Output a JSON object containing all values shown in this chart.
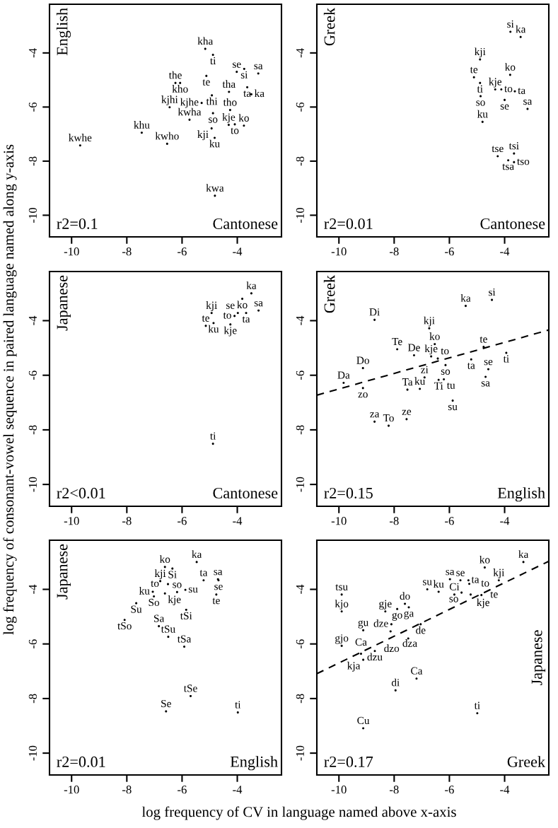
{
  "chart_data": [
    {
      "type": "scatter",
      "annotations": [
        "English",
        "Cantonese",
        "r2=0.1"
      ],
      "xlim": [
        -10.8,
        -2.4
      ],
      "ylim": [
        -10.8,
        -2.2
      ],
      "xticks": [
        -10,
        -8,
        -6,
        -4
      ],
      "yticks": [
        -10,
        -8,
        -6,
        -4
      ],
      "grid": false,
      "series": [
        {
          "marker": "circle",
          "x": [
            -5.16,
            -4.88,
            -5.12,
            -4.02,
            -3.75,
            -3.24,
            -6.24,
            -6.07,
            -3.64,
            -3.49,
            -4.3,
            -4.92,
            -5.29,
            -6.45,
            -4.88,
            -4.26,
            -5.73,
            -4.93,
            -4.31,
            -4.09,
            -3.76,
            -4.82,
            -7.46,
            -6.54,
            -9.69,
            -4.81
          ],
          "values": [
            -3.85,
            -4.07,
            -4.85,
            -4.7,
            -4.59,
            -4.76,
            -5.11,
            -5.11,
            -5.27,
            -5.53,
            -5.44,
            -5.57,
            -5.85,
            -6.01,
            -6.23,
            -6.11,
            -6.47,
            -6.79,
            -6.66,
            -6.64,
            -6.69,
            -7.14,
            -6.95,
            -7.36,
            -7.42,
            -9.28
          ],
          "value_labels": [
            "kha",
            "ti",
            "te",
            "se",
            "si",
            "sa",
            "the",
            "kho",
            "ta",
            "ka",
            "tha",
            "thi",
            "kjhe",
            "kjhi",
            "so",
            "tho",
            "kwha",
            "kji",
            "kje",
            "to",
            "ko",
            "ku",
            "khu",
            "kwho",
            "kwhe",
            "kwa"
          ]
        }
      ]
    },
    {
      "type": "scatter",
      "annotations": [
        "Greek",
        "Cantonese",
        "r2=0.01"
      ],
      "xlim": [
        -10.8,
        -2.4
      ],
      "ylim": [
        -10.8,
        -2.2
      ],
      "xticks": [
        -10,
        -8,
        -6,
        -4
      ],
      "yticks": [
        -10,
        -8,
        -6,
        -4
      ],
      "grid": false,
      "series": [
        {
          "marker": "circle",
          "x": [
            -3.79,
            -3.42,
            -4.89,
            -3.8,
            -5.11,
            -4.89,
            -4.34,
            -4.12,
            -3.63,
            -4.87,
            -4.0,
            -3.17,
            -4.8,
            -4.25,
            -3.66,
            -3.87,
            -3.66
          ],
          "values": [
            -3.22,
            -3.41,
            -4.24,
            -4.81,
            -4.9,
            -5.11,
            -5.35,
            -5.35,
            -5.42,
            -5.6,
            -5.74,
            -6.07,
            -6.55,
            -7.82,
            -7.72,
            -7.97,
            -8.04
          ],
          "value_labels": [
            "si",
            "ka",
            "kji",
            "ko",
            "te",
            "ti",
            "kje",
            "to",
            "ta",
            "so",
            "se",
            "sa",
            "ku",
            "tse",
            "tsi",
            "tsa",
            "tso"
          ]
        }
      ]
    },
    {
      "type": "scatter",
      "ylabel": "log frequency of consonant-vowel sequence in paired language named along y-axis",
      "annotations": [
        "Japanese",
        "Cantonese",
        "r2<0.01"
      ],
      "xlim": [
        -10.8,
        -2.4
      ],
      "ylim": [
        -10.8,
        -2.2
      ],
      "xticks": [
        -10,
        -8,
        -6,
        -4
      ],
      "yticks": [
        -10,
        -8,
        -6,
        -4
      ],
      "grid": false,
      "series": [
        {
          "marker": "circle",
          "x": [
            -3.49,
            -3.82,
            -3.23,
            -3.98,
            -3.68,
            -4.1,
            -4.93,
            -4.86,
            -5.14,
            -4.25,
            -4.88
          ],
          "values": [
            -3.0,
            -3.2,
            -3.63,
            -3.72,
            -3.72,
            -3.83,
            -3.72,
            -4.09,
            -4.19,
            -4.14,
            -8.51
          ],
          "value_labels": [
            "ka",
            "ko",
            "sa",
            "se",
            "ta",
            "to",
            "kji",
            "ku",
            "te",
            "kje",
            "ti"
          ]
        }
      ]
    },
    {
      "type": "scatter",
      "annotations": [
        "Greek",
        "English",
        "r2=0.15"
      ],
      "xlim": [
        -10.8,
        -2.4
      ],
      "ylim": [
        -10.8,
        -2.2
      ],
      "xticks": [
        -10,
        -8,
        -6,
        -4
      ],
      "yticks": [
        -10,
        -8,
        -6,
        -4
      ],
      "grid": false,
      "series": [
        {
          "marker": "circle",
          "x": [
            -5.41,
            -4.46,
            -8.71,
            -6.73,
            -6.53,
            -7.89,
            -7.28,
            -6.66,
            -6.42,
            -4.76,
            -3.94,
            -5.21,
            -6.14,
            -4.59,
            -4.69,
            -9.13,
            -9.83,
            -9.13,
            -6.9,
            -6.39,
            -6.2,
            -7.52,
            -7.07,
            -5.88,
            -8.71,
            -8.2,
            -7.55
          ],
          "values": [
            -3.46,
            -3.24,
            -3.97,
            -4.28,
            -4.86,
            -5.05,
            -5.27,
            -5.31,
            -5.39,
            -4.96,
            -5.18,
            -5.42,
            -5.63,
            -5.78,
            -6.06,
            -5.74,
            -6.28,
            -6.47,
            -6.08,
            -6.17,
            -6.15,
            -6.53,
            -6.5,
            -6.93,
            -7.7,
            -7.85,
            -7.61
          ],
          "value_labels": [
            "ka",
            "si",
            "Di",
            "kji",
            "ko",
            "Te",
            "De",
            "kje",
            "to",
            "te",
            "ti",
            "ta",
            "so",
            "se",
            "sa",
            "Do",
            "Da",
            "zo",
            "zi",
            "Ti",
            "tu",
            "Ta",
            "ku",
            "su",
            "za",
            "To",
            "ze"
          ]
        },
        {
          "type": "line",
          "line_style": "dashed",
          "color": "#000000",
          "x": [
            -10.8,
            -2.4
          ],
          "values": [
            -6.73,
            -4.34
          ]
        }
      ]
    },
    {
      "type": "scatter",
      "xlabel": "log frequency of CV in language named above x-axis",
      "annotations": [
        "Japanese",
        "English",
        "r2=0.01"
      ],
      "xlim": [
        -10.8,
        -2.4
      ],
      "ylim": [
        -10.8,
        -2.2
      ],
      "xticks": [
        -10,
        -8,
        -6,
        -4
      ],
      "yticks": [
        -10,
        -8,
        -6,
        -4
      ],
      "grid": false,
      "series": [
        {
          "marker": "circle",
          "x": [
            -5.47,
            -6.62,
            -6.35,
            -6.79,
            -6.51,
            -5.22,
            -4.7,
            -4.68,
            -7.06,
            -7.02,
            -6.62,
            -6.18,
            -5.88,
            -4.76,
            -7.66,
            -5.85,
            -8.08,
            -6.84,
            -6.5,
            -5.92,
            -5.69,
            -6.58,
            -3.98
          ],
          "values": [
            -3.0,
            -3.18,
            -3.24,
            -3.7,
            -3.81,
            -3.67,
            -3.63,
            -3.67,
            -4.09,
            -4.26,
            -4.15,
            -4.1,
            -4.02,
            -4.19,
            -4.51,
            -4.75,
            -5.12,
            -5.35,
            -5.74,
            -6.1,
            -7.91,
            -8.47,
            -8.51
          ],
          "value_labels": [
            "ka",
            "ko",
            "Si",
            "kji",
            "to",
            "ta",
            "sa",
            "se",
            "ku",
            "So",
            "kje",
            "so",
            "su",
            "te",
            "Su",
            "tSi",
            "tSo",
            "Sa",
            "tSu",
            "tSa",
            "tSe",
            "Se",
            "ti"
          ]
        }
      ]
    },
    {
      "type": "scatter",
      "annotations": [
        "Japanese",
        "Greek",
        "r2=0.17"
      ],
      "xlim": [
        -10.8,
        -2.4
      ],
      "ylim": [
        -10.8,
        -2.2
      ],
      "xticks": [
        -10,
        -8,
        -6,
        -4
      ],
      "yticks": [
        -10,
        -8,
        -6,
        -4
      ],
      "grid": false,
      "series": [
        {
          "marker": "circle",
          "x": [
            -3.32,
            -4.72,
            -4.21,
            -5.98,
            -5.6,
            -5.31,
            -5.28,
            -6.8,
            -6.39,
            -5.82,
            -5.56,
            -5.23,
            -4.84,
            -9.9,
            -9.9,
            -7.61,
            -7.47,
            -7.89,
            -8.32,
            -8.1,
            -7.04,
            -8.13,
            -7.49,
            -9.12,
            -9.9,
            -8.7,
            -9.2,
            -9.12,
            -7.19,
            -7.95,
            -4.99,
            -9.12
          ],
          "values": [
            -3.0,
            -3.2,
            -3.67,
            -3.63,
            -3.67,
            -3.67,
            -3.8,
            -4.0,
            -4.09,
            -4.19,
            -4.12,
            -4.19,
            -4.21,
            -4.19,
            -4.81,
            -4.53,
            -4.66,
            -4.72,
            -4.81,
            -5.28,
            -5.28,
            -5.54,
            -5.8,
            -5.5,
            -6.07,
            -6.26,
            -6.36,
            -6.58,
            -7.27,
            -7.7,
            -8.54,
            -9.09
          ],
          "value_labels": [
            "ka",
            "ko",
            "kji",
            "sa",
            "se",
            "ta",
            "to",
            "su",
            "ku",
            "Ci",
            "so",
            "kje",
            "te",
            "tsu",
            "kjo",
            "do",
            "ga",
            "go",
            "gje",
            "dze",
            "de",
            "dza",
            "dzo",
            "gu",
            "gjo",
            "dzu",
            "Ca",
            "kja",
            "Ca",
            "di",
            "ti",
            "Cu"
          ]
        },
        {
          "type": "line",
          "line_style": "dashed",
          "color": "#000000",
          "x": [
            -10.8,
            -2.4
          ],
          "values": [
            -7.09,
            -2.97
          ]
        }
      ]
    }
  ]
}
